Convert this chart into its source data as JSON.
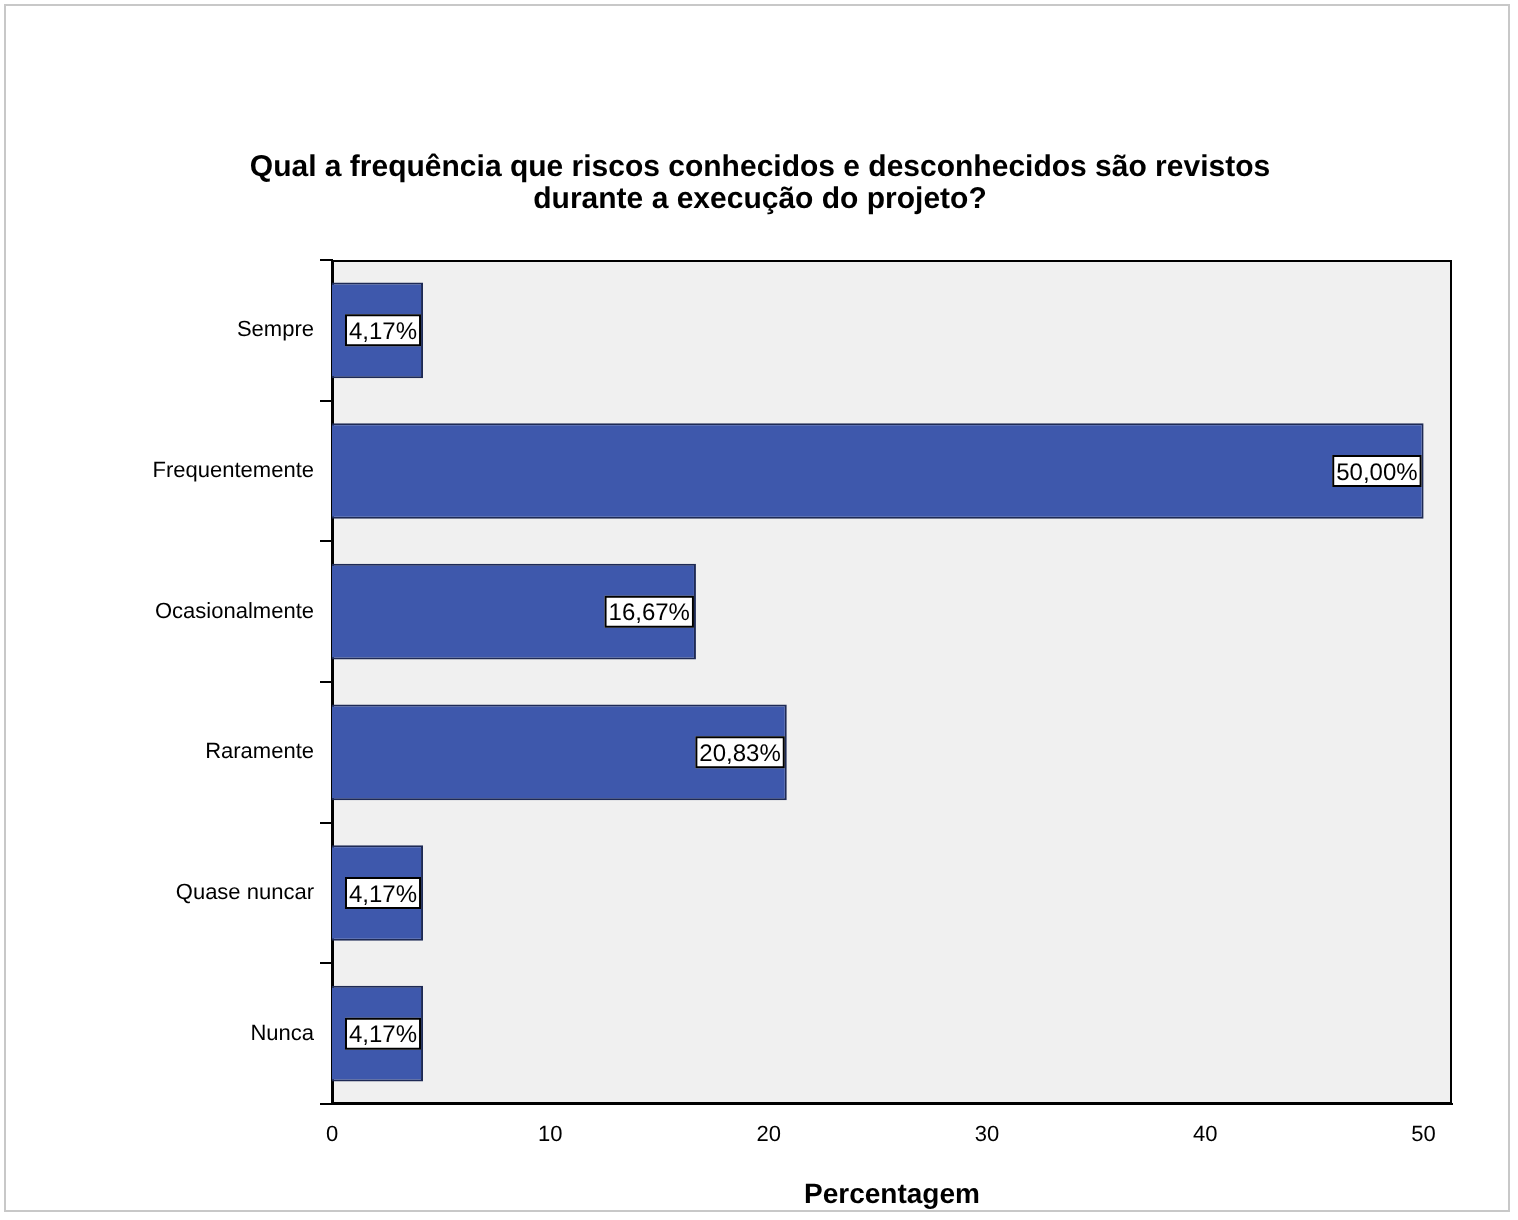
{
  "chart_data": {
    "type": "bar",
    "orientation": "horizontal",
    "title": "Qual a frequência que riscos conhecidos e desconhecidos são revistos durante a execução do projeto?",
    "xlabel": "Percentagem",
    "categories": [
      "Sempre",
      "Frequentemente",
      "Ocasionalmente",
      "Raramente",
      "Quase nuncar",
      "Nunca"
    ],
    "values": [
      4.17,
      50.0,
      16.67,
      20.83,
      4.17,
      4.17
    ],
    "value_labels": [
      "4,17%",
      "50,00%",
      "16,67%",
      "20,83%",
      "4,17%",
      "4,17%"
    ],
    "color": "#3e58ac",
    "xlim": [
      0,
      51.3
    ],
    "xticks": [
      0,
      10,
      20,
      30,
      40,
      50
    ],
    "grid": false,
    "legend": false
  }
}
